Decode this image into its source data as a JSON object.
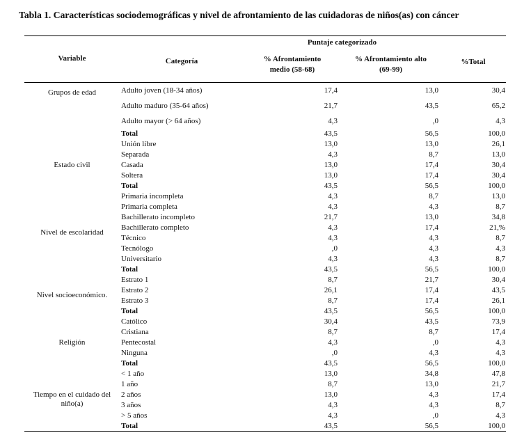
{
  "title": "Tabla 1. Características sociodemográficas y nivel de afrontamiento de las cuidadoras de niños(as) con cáncer",
  "table": {
    "header": {
      "span_label": "Puntaje categorizado",
      "col_variable": "Variable",
      "col_categoria": "Categoría",
      "col_medio_line1": "% Afrontamiento",
      "col_medio_line2": "medio (58-68)",
      "col_alto_line1": "% Afrontamiento alto",
      "col_alto_line2": "(69-99)",
      "col_total": "%Total"
    },
    "groups": [
      {
        "variable": "Grupos de edad",
        "rows": [
          {
            "categoria": "Adulto joven (18-34 años)",
            "medio": "17,4",
            "alto": "13,0",
            "total": "30,4",
            "bold": false
          },
          {
            "categoria": "Adulto maduro (35-64 años)",
            "medio": "21,7",
            "alto": "43,5",
            "total": "65,2",
            "bold": false
          },
          {
            "categoria": "Adulto mayor (> 64 años)",
            "medio": "4,3",
            "alto": ",0",
            "total": "4,3",
            "bold": false
          },
          {
            "categoria": "Total",
            "medio": "43,5",
            "alto": "56,5",
            "total": "100,0",
            "bold": true
          }
        ]
      },
      {
        "variable": "Estado civil",
        "rows": [
          {
            "categoria": "Unión libre",
            "medio": "13,0",
            "alto": "13,0",
            "total": "26,1",
            "bold": false
          },
          {
            "categoria": "Separada",
            "medio": "4,3",
            "alto": "8,7",
            "total": "13,0",
            "bold": false
          },
          {
            "categoria": "Casada",
            "medio": "13,0",
            "alto": "17,4",
            "total": "30,4",
            "bold": false
          },
          {
            "categoria": "Soltera",
            "medio": "13,0",
            "alto": "17,4",
            "total": "30,4",
            "bold": false
          },
          {
            "categoria": "Total",
            "medio": "43,5",
            "alto": "56,5",
            "total": "100,0",
            "bold": true
          }
        ]
      },
      {
        "variable": "Nivel de escolaridad",
        "rows": [
          {
            "categoria": "Primaria incompleta",
            "medio": "4,3",
            "alto": "8,7",
            "total": "13,0",
            "bold": false
          },
          {
            "categoria": "Primaria completa",
            "medio": "4,3",
            "alto": "4,3",
            "total": "8,7",
            "bold": false
          },
          {
            "categoria": "Bachillerato incompleto",
            "medio": "21,7",
            "alto": "13,0",
            "total": "34,8",
            "bold": false
          },
          {
            "categoria": "Bachillerato completo",
            "medio": "4,3",
            "alto": "17,4",
            "total": "21,%",
            "bold": false
          },
          {
            "categoria": "Técnico",
            "medio": "4,3",
            "alto": "4,3",
            "total": "8,7",
            "bold": false
          },
          {
            "categoria": "Tecnólogo",
            "medio": ",0",
            "alto": "4,3",
            "total": "4,3",
            "bold": false
          },
          {
            "categoria": "Universitario",
            "medio": "4,3",
            "alto": "4,3",
            "total": "8,7",
            "bold": false
          },
          {
            "categoria": "Total",
            "medio": "43,5",
            "alto": "56,5",
            "total": "100,0",
            "bold": true
          }
        ]
      },
      {
        "variable": "Nivel socioeconómico.",
        "rows": [
          {
            "categoria": "Estrato 1",
            "medio": "8,7",
            "alto": "21,7",
            "total": "30,4",
            "bold": false
          },
          {
            "categoria": "Estrato 2",
            "medio": "26,1",
            "alto": "17,4",
            "total": "43,5",
            "bold": false
          },
          {
            "categoria": "Estrato 3",
            "medio": "8,7",
            "alto": "17,4",
            "total": "26,1",
            "bold": false
          },
          {
            "categoria": "Total",
            "medio": "43,5",
            "alto": "56,5",
            "total": "100,0",
            "bold": true
          }
        ]
      },
      {
        "variable": "Religión",
        "rows": [
          {
            "categoria": "Católico",
            "medio": "30,4",
            "alto": "43,5",
            "total": "73,9",
            "bold": false
          },
          {
            "categoria": "Cristiana",
            "medio": "8,7",
            "alto": "8,7",
            "total": "17,4",
            "bold": false
          },
          {
            "categoria": "Pentecostal",
            "medio": "4,3",
            "alto": ",0",
            "total": "4,3",
            "bold": false
          },
          {
            "categoria": "Ninguna",
            "medio": ",0",
            "alto": "4,3",
            "total": "4,3",
            "bold": false
          },
          {
            "categoria": "Total",
            "medio": "43,5",
            "alto": "56,5",
            "total": "100,0",
            "bold": true
          }
        ]
      },
      {
        "variable": "Tiempo en el cuidado del niño(a)",
        "rows": [
          {
            "categoria": "< 1 año",
            "medio": "13,0",
            "alto": "34,8",
            "total": "47,8",
            "bold": false
          },
          {
            "categoria": "1 año",
            "medio": "8,7",
            "alto": "13,0",
            "total": "21,7",
            "bold": false
          },
          {
            "categoria": "2 años",
            "medio": "13,0",
            "alto": "4,3",
            "total": "17,4",
            "bold": false
          },
          {
            "categoria": "3 años",
            "medio": "4,3",
            "alto": "4,3",
            "total": "8,7",
            "bold": false
          },
          {
            "categoria": "> 5 años",
            "medio": "4,3",
            "alto": ",0",
            "total": "4,3",
            "bold": false
          },
          {
            "categoria": "Total",
            "medio": "43,5",
            "alto": "56,5",
            "total": "100,0",
            "bold": true
          }
        ]
      }
    ]
  }
}
